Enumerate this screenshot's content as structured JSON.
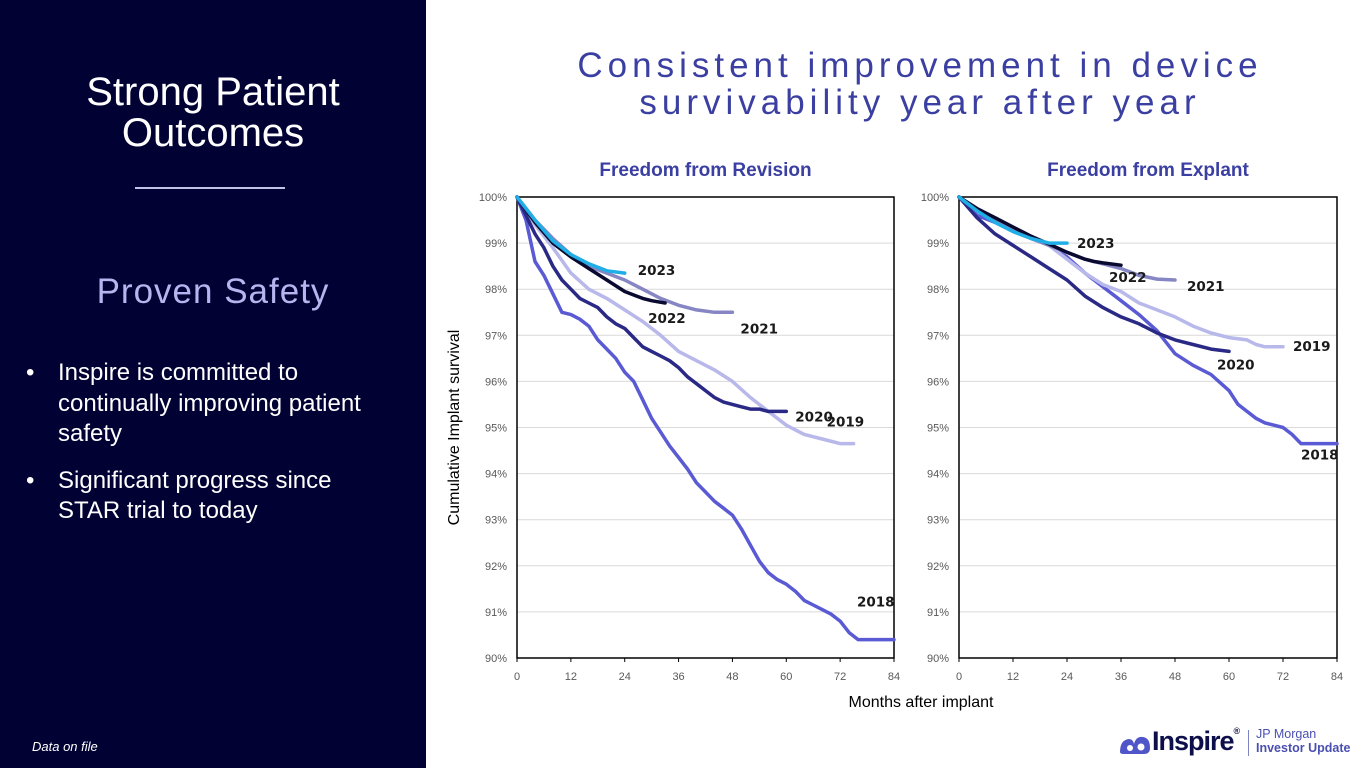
{
  "sidebar": {
    "title_line1": "Strong Patient",
    "title_line2": "Outcomes",
    "subtitle": "Proven Safety",
    "bullet_symbol": "•",
    "bullets": [
      "Inspire is committed to continually improving patient safety",
      "Significant progress since STAR trial to today"
    ],
    "footnote": "Data on file"
  },
  "header": {
    "title_line1": "Consistent improvement in device",
    "title_line2": "survivability year after year"
  },
  "logo": {
    "brand": "Inspire",
    "registered": "®",
    "line1": "JP Morgan",
    "line2": "Investor Update"
  },
  "colors": {
    "sidebar_bg": "#010233",
    "title_accent": "#3a3fa1",
    "series_2018": "#5a5ad4",
    "series_2019": "#b8b8ea",
    "series_2020": "#2a2a86",
    "series_2021": "#8686c4",
    "series_2022": "#0a0a30",
    "series_2023": "#20aee6"
  },
  "chart_data": [
    {
      "type": "line",
      "title": "Freedom from Revision",
      "xlabel": "Months after implant",
      "ylabel": "Cumulative Implant survival",
      "xlim": [
        0,
        84
      ],
      "ylim": [
        90,
        100
      ],
      "x_ticks": [
        0,
        12,
        24,
        36,
        48,
        60,
        72,
        84
      ],
      "y_ticks": [
        "90%",
        "91%",
        "92%",
        "93%",
        "94%",
        "95%",
        "96%",
        "97%",
        "98%",
        "99%",
        "100%"
      ],
      "grid": "horizontal",
      "series": [
        {
          "name": "2018",
          "points": [
            [
              0,
              100
            ],
            [
              2,
              99.5
            ],
            [
              4,
              98.6
            ],
            [
              6,
              98.3
            ],
            [
              8,
              97.9
            ],
            [
              10,
              97.5
            ],
            [
              12,
              97.45
            ],
            [
              14,
              97.35
            ],
            [
              16,
              97.2
            ],
            [
              18,
              96.9
            ],
            [
              20,
              96.7
            ],
            [
              22,
              96.5
            ],
            [
              24,
              96.2
            ],
            [
              26,
              96.0
            ],
            [
              28,
              95.6
            ],
            [
              30,
              95.2
            ],
            [
              32,
              94.9
            ],
            [
              34,
              94.6
            ],
            [
              36,
              94.35
            ],
            [
              38,
              94.1
            ],
            [
              40,
              93.8
            ],
            [
              42,
              93.6
            ],
            [
              44,
              93.4
            ],
            [
              46,
              93.25
            ],
            [
              48,
              93.1
            ],
            [
              50,
              92.8
            ],
            [
              52,
              92.45
            ],
            [
              54,
              92.1
            ],
            [
              56,
              91.85
            ],
            [
              58,
              91.7
            ],
            [
              60,
              91.6
            ],
            [
              62,
              91.45
            ],
            [
              64,
              91.25
            ],
            [
              66,
              91.15
            ],
            [
              68,
              91.05
            ],
            [
              70,
              90.95
            ],
            [
              72,
              90.8
            ],
            [
              74,
              90.55
            ],
            [
              76,
              90.4
            ],
            [
              80,
              90.4
            ],
            [
              84,
              90.4
            ]
          ]
        },
        {
          "name": "2019",
          "points": [
            [
              0,
              100
            ],
            [
              4,
              99.4
            ],
            [
              8,
              98.9
            ],
            [
              12,
              98.35
            ],
            [
              16,
              98.0
            ],
            [
              20,
              97.8
            ],
            [
              24,
              97.55
            ],
            [
              28,
              97.3
            ],
            [
              32,
              97.0
            ],
            [
              36,
              96.65
            ],
            [
              40,
              96.45
            ],
            [
              44,
              96.25
            ],
            [
              48,
              96.0
            ],
            [
              52,
              95.65
            ],
            [
              56,
              95.35
            ],
            [
              60,
              95.05
            ],
            [
              64,
              94.85
            ],
            [
              68,
              94.75
            ],
            [
              72,
              94.65
            ],
            [
              75,
              94.65
            ]
          ]
        },
        {
          "name": "2020",
          "points": [
            [
              0,
              100
            ],
            [
              2,
              99.6
            ],
            [
              4,
              99.2
            ],
            [
              6,
              98.9
            ],
            [
              8,
              98.5
            ],
            [
              10,
              98.2
            ],
            [
              12,
              98.0
            ],
            [
              14,
              97.8
            ],
            [
              16,
              97.7
            ],
            [
              18,
              97.6
            ],
            [
              20,
              97.4
            ],
            [
              22,
              97.25
            ],
            [
              24,
              97.15
            ],
            [
              26,
              96.95
            ],
            [
              28,
              96.75
            ],
            [
              30,
              96.65
            ],
            [
              32,
              96.55
            ],
            [
              34,
              96.45
            ],
            [
              36,
              96.3
            ],
            [
              38,
              96.1
            ],
            [
              40,
              95.95
            ],
            [
              42,
              95.8
            ],
            [
              44,
              95.65
            ],
            [
              46,
              95.55
            ],
            [
              48,
              95.5
            ],
            [
              50,
              95.45
            ],
            [
              52,
              95.4
            ],
            [
              54,
              95.4
            ],
            [
              56,
              95.35
            ],
            [
              58,
              95.35
            ],
            [
              60,
              95.35
            ]
          ]
        },
        {
          "name": "2021",
          "points": [
            [
              0,
              100
            ],
            [
              4,
              99.5
            ],
            [
              8,
              99.1
            ],
            [
              12,
              98.75
            ],
            [
              16,
              98.5
            ],
            [
              20,
              98.35
            ],
            [
              24,
              98.2
            ],
            [
              28,
              98.0
            ],
            [
              32,
              97.8
            ],
            [
              36,
              97.65
            ],
            [
              40,
              97.55
            ],
            [
              44,
              97.5
            ],
            [
              48,
              97.5
            ]
          ]
        },
        {
          "name": "2022",
          "points": [
            [
              0,
              100
            ],
            [
              4,
              99.45
            ],
            [
              8,
              99.0
            ],
            [
              12,
              98.7
            ],
            [
              16,
              98.45
            ],
            [
              20,
              98.2
            ],
            [
              24,
              97.95
            ],
            [
              28,
              97.8
            ],
            [
              30,
              97.75
            ],
            [
              33,
              97.7
            ]
          ]
        },
        {
          "name": "2023",
          "points": [
            [
              0,
              100
            ],
            [
              4,
              99.5
            ],
            [
              8,
              99.05
            ],
            [
              12,
              98.75
            ],
            [
              16,
              98.55
            ],
            [
              20,
              98.4
            ],
            [
              24,
              98.35
            ]
          ]
        }
      ]
    },
    {
      "type": "line",
      "title": "Freedom from Explant",
      "xlabel": "Months after implant",
      "ylabel": "",
      "xlim": [
        0,
        84
      ],
      "ylim": [
        90,
        100
      ],
      "x_ticks": [
        0,
        12,
        24,
        36,
        48,
        60,
        72,
        84
      ],
      "y_ticks": [
        "90%",
        "91%",
        "92%",
        "93%",
        "94%",
        "95%",
        "96%",
        "97%",
        "98%",
        "99%",
        "100%"
      ],
      "grid": "horizontal",
      "series": [
        {
          "name": "2018",
          "points": [
            [
              0,
              100
            ],
            [
              4,
              99.6
            ],
            [
              8,
              99.45
            ],
            [
              12,
              99.3
            ],
            [
              16,
              99.15
            ],
            [
              20,
              98.95
            ],
            [
              24,
              98.7
            ],
            [
              28,
              98.35
            ],
            [
              32,
              98.05
            ],
            [
              36,
              97.75
            ],
            [
              40,
              97.45
            ],
            [
              44,
              97.1
            ],
            [
              48,
              96.6
            ],
            [
              52,
              96.35
            ],
            [
              56,
              96.15
            ],
            [
              60,
              95.8
            ],
            [
              62,
              95.5
            ],
            [
              64,
              95.35
            ],
            [
              66,
              95.2
            ],
            [
              68,
              95.1
            ],
            [
              70,
              95.05
            ],
            [
              72,
              95.0
            ],
            [
              74,
              94.85
            ],
            [
              76,
              94.65
            ],
            [
              80,
              94.65
            ],
            [
              84,
              94.65
            ]
          ]
        },
        {
          "name": "2019",
          "points": [
            [
              0,
              100
            ],
            [
              4,
              99.7
            ],
            [
              8,
              99.55
            ],
            [
              12,
              99.35
            ],
            [
              16,
              99.15
            ],
            [
              20,
              98.95
            ],
            [
              24,
              98.65
            ],
            [
              28,
              98.35
            ],
            [
              32,
              98.1
            ],
            [
              36,
              97.95
            ],
            [
              40,
              97.7
            ],
            [
              44,
              97.55
            ],
            [
              48,
              97.4
            ],
            [
              52,
              97.2
            ],
            [
              56,
              97.05
            ],
            [
              60,
              96.95
            ],
            [
              64,
              96.9
            ],
            [
              66,
              96.8
            ],
            [
              68,
              96.75
            ],
            [
              72,
              96.75
            ]
          ]
        },
        {
          "name": "2020",
          "points": [
            [
              0,
              100
            ],
            [
              4,
              99.55
            ],
            [
              8,
              99.2
            ],
            [
              12,
              98.95
            ],
            [
              16,
              98.7
            ],
            [
              20,
              98.45
            ],
            [
              24,
              98.2
            ],
            [
              28,
              97.85
            ],
            [
              32,
              97.6
            ],
            [
              36,
              97.4
            ],
            [
              40,
              97.25
            ],
            [
              44,
              97.05
            ],
            [
              48,
              96.9
            ],
            [
              52,
              96.8
            ],
            [
              56,
              96.7
            ],
            [
              60,
              96.65
            ]
          ]
        },
        {
          "name": "2021",
          "points": [
            [
              0,
              100
            ],
            [
              4,
              99.7
            ],
            [
              8,
              99.5
            ],
            [
              12,
              99.3
            ],
            [
              16,
              99.1
            ],
            [
              20,
              98.95
            ],
            [
              24,
              98.8
            ],
            [
              28,
              98.65
            ],
            [
              32,
              98.55
            ],
            [
              36,
              98.45
            ],
            [
              40,
              98.3
            ],
            [
              44,
              98.22
            ],
            [
              48,
              98.2
            ]
          ]
        },
        {
          "name": "2022",
          "points": [
            [
              0,
              100
            ],
            [
              4,
              99.75
            ],
            [
              8,
              99.55
            ],
            [
              12,
              99.35
            ],
            [
              16,
              99.15
            ],
            [
              20,
              98.98
            ],
            [
              24,
              98.8
            ],
            [
              28,
              98.65
            ],
            [
              30,
              98.6
            ],
            [
              32,
              98.57
            ],
            [
              36,
              98.52
            ]
          ]
        },
        {
          "name": "2023",
          "points": [
            [
              0,
              100
            ],
            [
              4,
              99.7
            ],
            [
              8,
              99.45
            ],
            [
              12,
              99.25
            ],
            [
              16,
              99.1
            ],
            [
              20,
              99.0
            ],
            [
              24,
              99.0
            ]
          ]
        }
      ]
    }
  ]
}
